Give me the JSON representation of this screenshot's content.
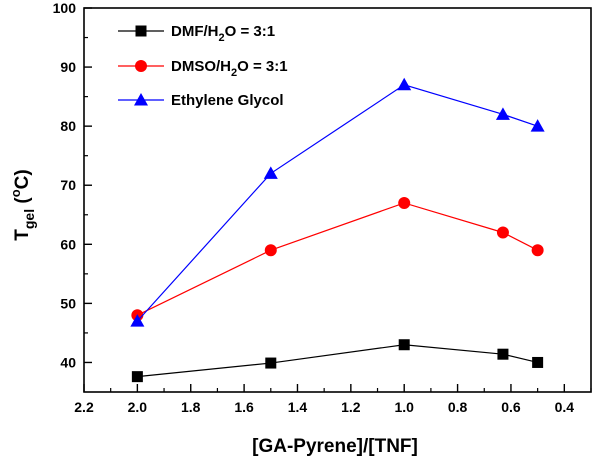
{
  "chart_data": {
    "type": "line",
    "title": "",
    "xlabel": "[GA-Pyrene]/[TNF]",
    "ylabel": {
      "main": "T",
      "sub": "gel",
      "paren_open": " (",
      "sup": "o",
      "unit": "C",
      "paren_close": ")"
    },
    "xlim": [
      2.2,
      0.3
    ],
    "ylim": [
      35,
      100
    ],
    "x_inverted": true,
    "x_ticks": [
      "2.2",
      "2.0",
      "1.8",
      "1.6",
      "1.4",
      "1.2",
      "1.0",
      "0.8",
      "0.6",
      "0.4"
    ],
    "y_ticks": [
      "40",
      "50",
      "60",
      "70",
      "80",
      "90",
      "100"
    ],
    "grid": false,
    "legend_position": "top-left",
    "series": [
      {
        "name": "DMF/H2O = 3:1",
        "legend": {
          "pre": "DMF/H",
          "sub": "2",
          "post": "O = 3:1"
        },
        "color": "#000000",
        "marker": "square",
        "x": [
          2.0,
          1.5,
          1.0,
          0.63,
          0.5
        ],
        "values": [
          37.6,
          39.9,
          43.0,
          41.4,
          40.0
        ]
      },
      {
        "name": "DMSO/H2O = 3:1",
        "legend": {
          "pre": "DMSO/H",
          "sub": "2",
          "post": "O = 3:1"
        },
        "color": "#ff0000",
        "marker": "circle",
        "x": [
          2.0,
          1.5,
          1.0,
          0.63,
          0.5
        ],
        "values": [
          48,
          59,
          67,
          62,
          59
        ]
      },
      {
        "name": "Ethylene Glycol",
        "legend": {
          "pre": "Ethylene Glycol",
          "sub": "",
          "post": ""
        },
        "color": "#0000ff",
        "marker": "triangle",
        "x": [
          2.0,
          1.5,
          1.0,
          0.63,
          0.5
        ],
        "values": [
          47,
          72,
          87,
          82,
          80
        ]
      }
    ]
  }
}
